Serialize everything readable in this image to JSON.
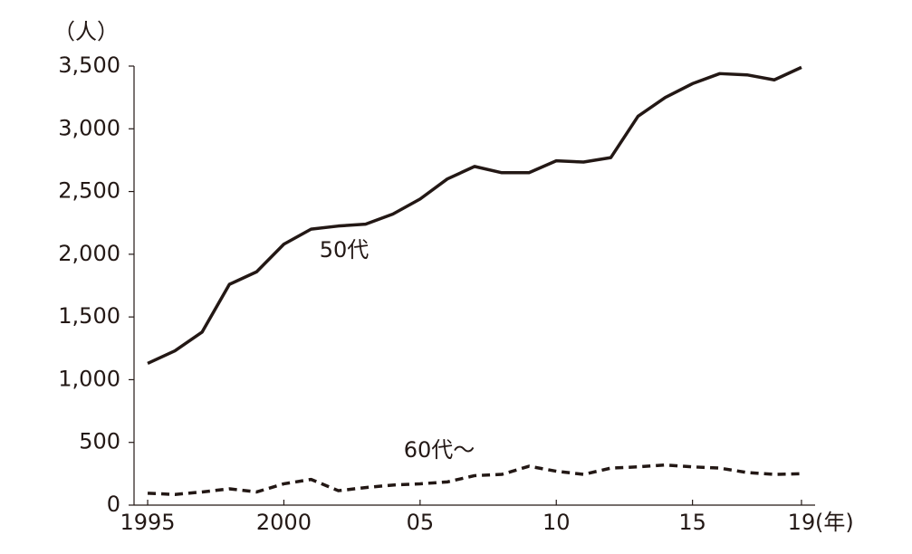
{
  "chart_data": {
    "type": "line",
    "y_unit": "（人）",
    "x_unit": "(年)",
    "x": [
      1995,
      1996,
      1997,
      1998,
      1999,
      2000,
      2001,
      2002,
      2003,
      2004,
      2005,
      2006,
      2007,
      2008,
      2009,
      2010,
      2011,
      2012,
      2013,
      2014,
      2015,
      2016,
      2017,
      2018,
      2019
    ],
    "series": [
      {
        "name": "50代",
        "color": "#231815",
        "line_style": "solid",
        "values": [
          1130,
          1230,
          1380,
          1760,
          1860,
          2080,
          2200,
          2225,
          2240,
          2320,
          2440,
          2600,
          2700,
          2650,
          2650,
          2745,
          2735,
          2770,
          3100,
          3250,
          3360,
          3440,
          3430,
          3390,
          3490
        ]
      },
      {
        "name": "60代～",
        "color": "#231815",
        "line_style": "dashed",
        "values": [
          95,
          85,
          105,
          130,
          105,
          170,
          205,
          115,
          140,
          160,
          170,
          185,
          235,
          245,
          310,
          270,
          245,
          295,
          305,
          320,
          305,
          295,
          260,
          245,
          250
        ]
      }
    ],
    "xlim": [
      1994.5,
      2019.5
    ],
    "xticks": [
      1995,
      2000,
      {
        "value": 2005,
        "label": "05"
      },
      {
        "value": 2010,
        "label": "10"
      },
      {
        "value": 2015,
        "label": "15"
      },
      {
        "value": 2019,
        "label": "19"
      }
    ],
    "ylim": [
      0,
      3500
    ],
    "yticks": [
      0,
      500,
      {
        "value": 1000,
        "label": "1,000"
      },
      {
        "value": 1500,
        "label": "1,500"
      },
      {
        "value": 2000,
        "label": "2,000"
      },
      {
        "value": 2500,
        "label": "2,500"
      },
      {
        "value": 3000,
        "label": "3,000"
      },
      {
        "value": 3500,
        "label": "3,500"
      }
    ],
    "grid": false
  }
}
